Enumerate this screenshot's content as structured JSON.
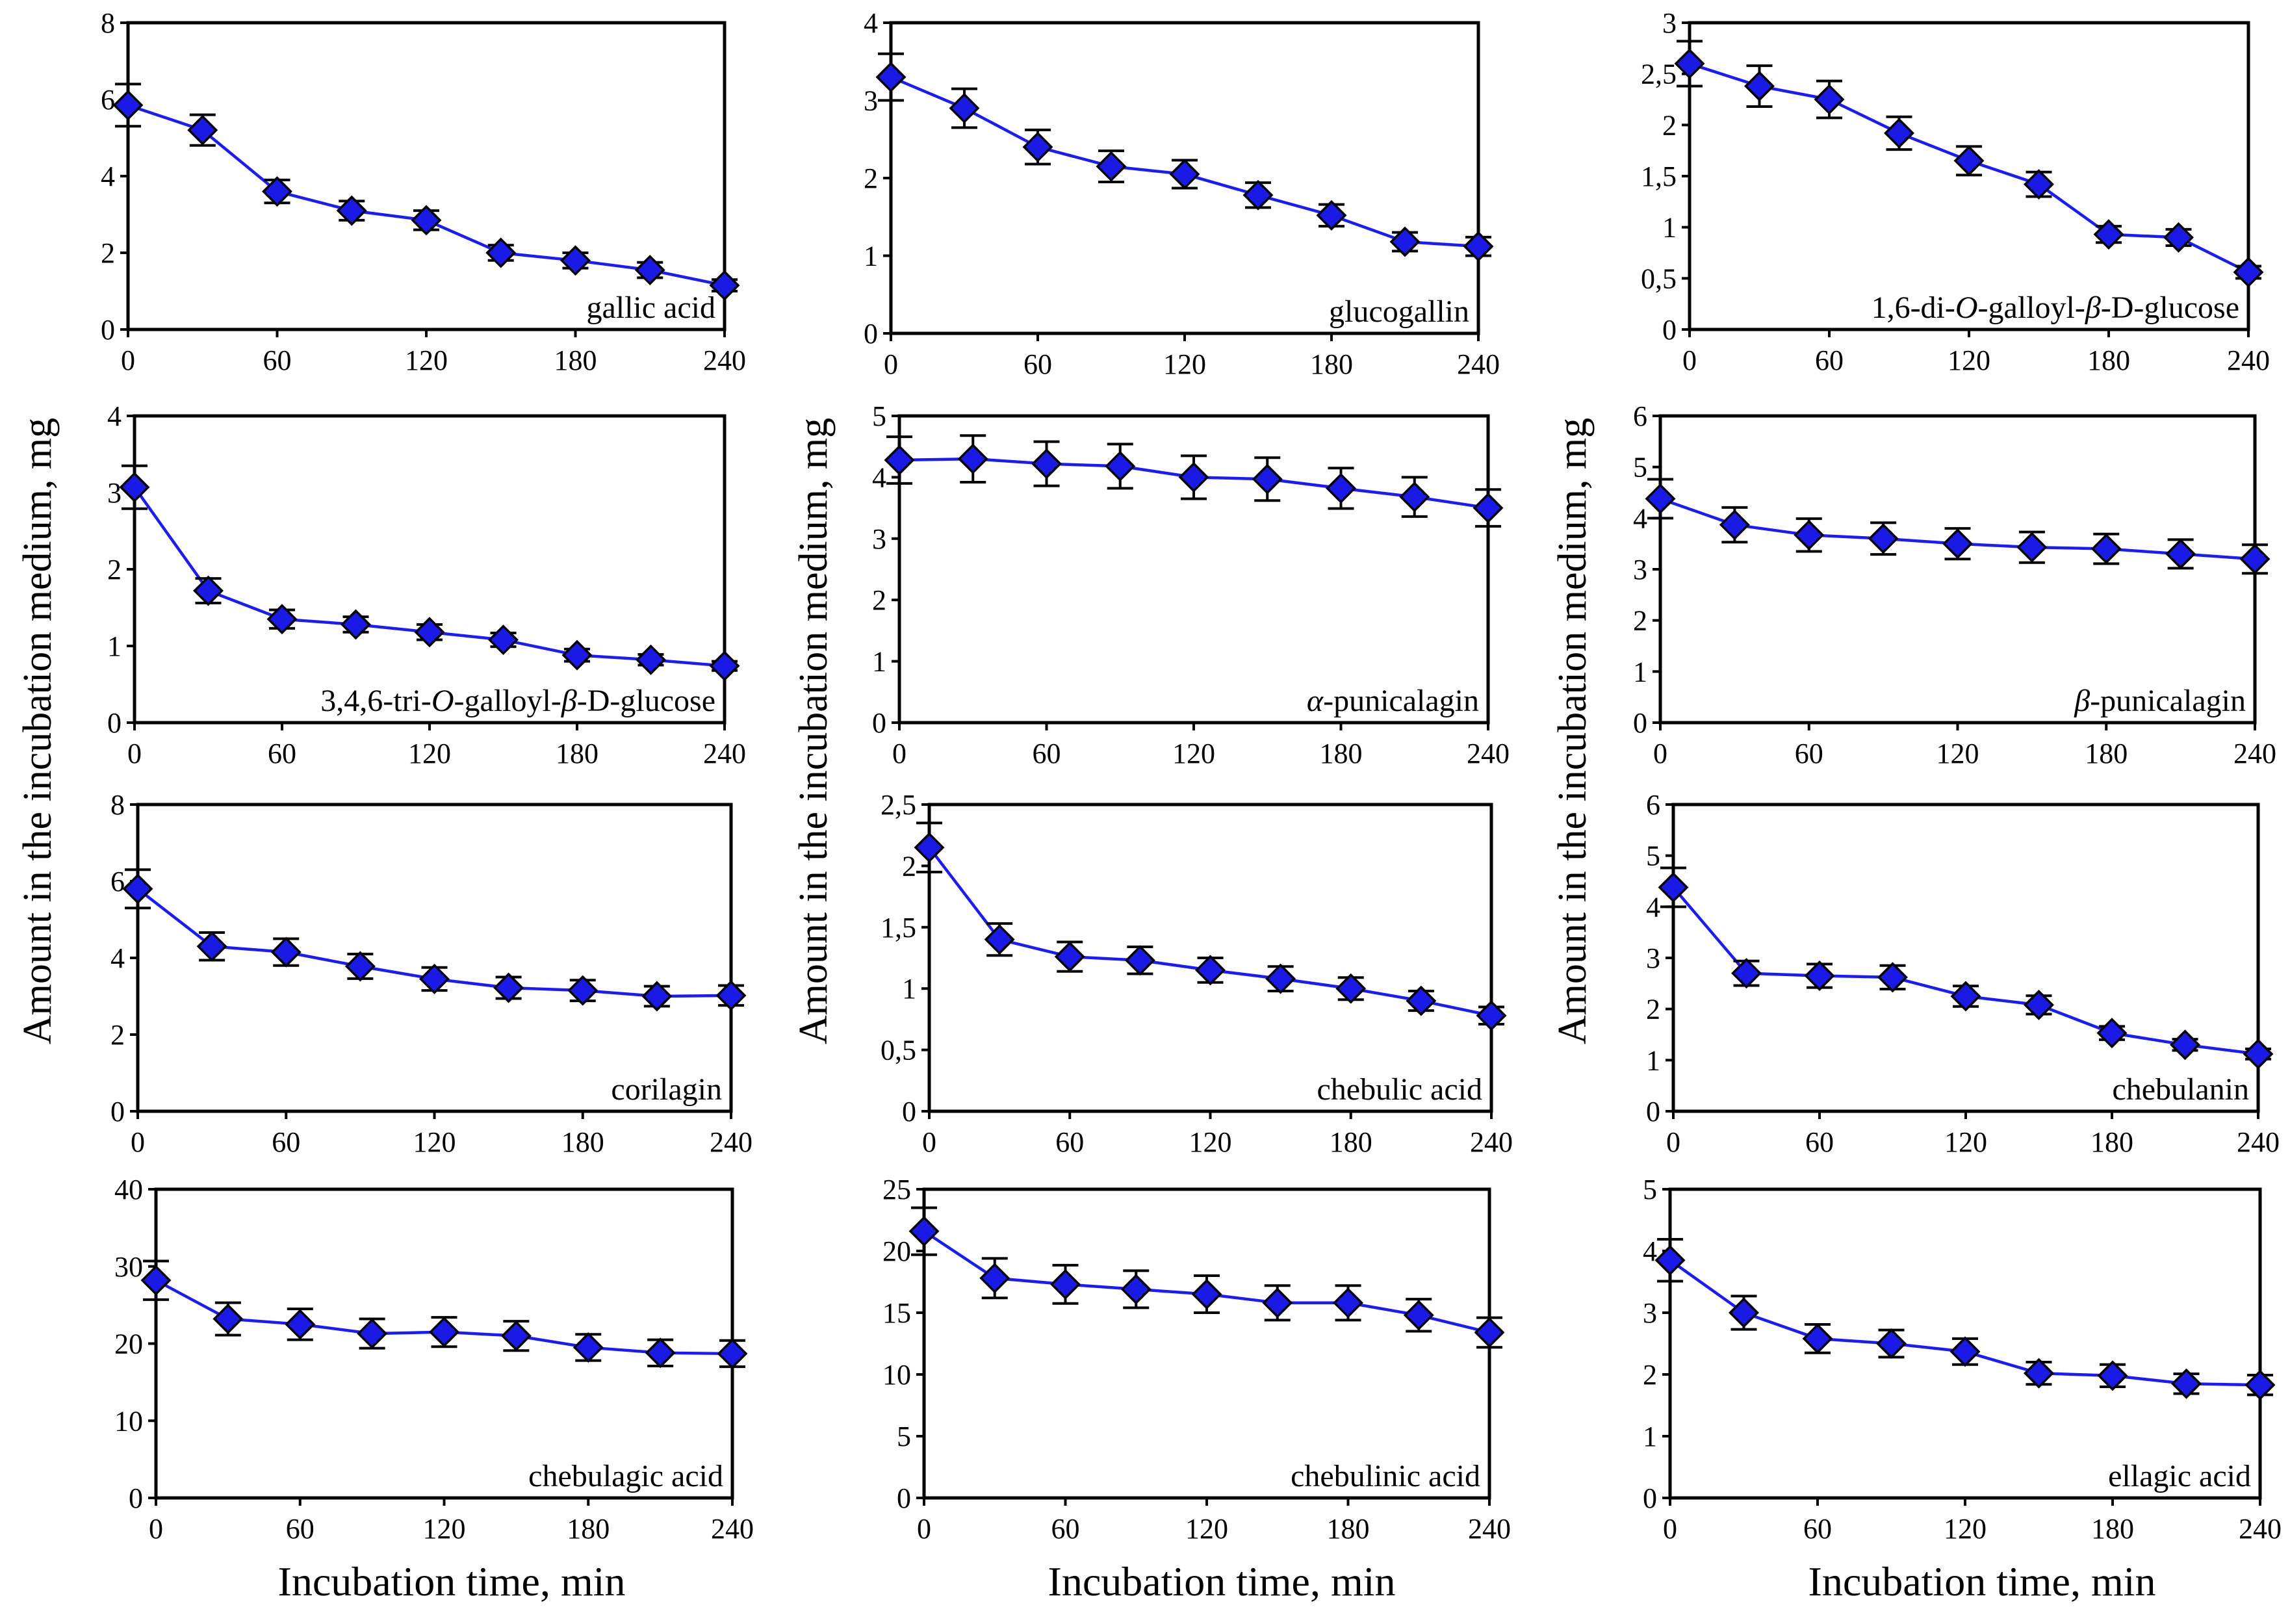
{
  "figure": {
    "y_axis_label": "Amount in the incubation medium, mg",
    "x_axis_label": "Incubation time, min",
    "series_color": "#1a1aff",
    "marker_fill": "#1a1ae6",
    "marker_stroke": "#000000",
    "x_ticks": [
      "0",
      "60",
      "120",
      "180",
      "240"
    ]
  },
  "chart_data": [
    {
      "type": "line",
      "name": "gallic acid",
      "x": [
        0,
        30,
        60,
        90,
        120,
        150,
        180,
        210,
        240
      ],
      "y": [
        5.85,
        5.2,
        3.6,
        3.1,
        2.85,
        2.0,
        1.8,
        1.55,
        1.15
      ],
      "err": [
        0.55,
        0.4,
        0.3,
        0.25,
        0.25,
        0.2,
        0.2,
        0.2,
        0.15
      ],
      "xlim": [
        0,
        240
      ],
      "ylim": [
        0,
        8
      ],
      "yticks": [
        "0",
        "2",
        "4",
        "6",
        "8"
      ],
      "xlabel": "Incubation time, min",
      "ylabel": "Amount in the incubation medium, mg"
    },
    {
      "type": "line",
      "name": "glucogallin",
      "x": [
        0,
        30,
        60,
        90,
        120,
        150,
        180,
        210,
        240
      ],
      "y": [
        3.3,
        2.9,
        2.4,
        2.15,
        2.05,
        1.78,
        1.52,
        1.18,
        1.12
      ],
      "err": [
        0.3,
        0.25,
        0.22,
        0.2,
        0.18,
        0.16,
        0.14,
        0.12,
        0.12
      ],
      "xlim": [
        0,
        240
      ],
      "ylim": [
        0,
        4
      ],
      "yticks": [
        "0",
        "1",
        "2",
        "3",
        "4"
      ],
      "xlabel": "Incubation time, min",
      "ylabel": "Amount in the incubation medium, mg"
    },
    {
      "type": "line",
      "name": "1,6-di-O-galloyl-β-D-glucose",
      "label_parts": [
        "1,6-di-",
        "O",
        "-galloyl-",
        "β",
        "-D-glucose"
      ],
      "x": [
        0,
        30,
        60,
        90,
        120,
        150,
        180,
        210,
        240
      ],
      "y": [
        2.6,
        2.38,
        2.25,
        1.92,
        1.65,
        1.42,
        0.93,
        0.9,
        0.56
      ],
      "err": [
        0.22,
        0.2,
        0.18,
        0.16,
        0.14,
        0.12,
        0.08,
        0.08,
        0.06
      ],
      "xlim": [
        0,
        240
      ],
      "ylim": [
        0,
        3
      ],
      "yticks": [
        "0",
        "0,5",
        "1",
        "1,5",
        "2",
        "2,5",
        "3"
      ],
      "xlabel": "Incubation time, min",
      "ylabel": "Amount in the incubation medium, mg"
    },
    {
      "type": "line",
      "name": "3,4,6-tri-O-galloyl-β-D-glucose",
      "label_parts": [
        "3,4,6-tri-",
        "O",
        "-galloyl-",
        "β",
        "-D-glucose"
      ],
      "x": [
        0,
        30,
        60,
        90,
        120,
        150,
        180,
        210,
        240
      ],
      "y": [
        3.07,
        1.72,
        1.35,
        1.28,
        1.18,
        1.08,
        0.88,
        0.82,
        0.74
      ],
      "err": [
        0.28,
        0.16,
        0.12,
        0.1,
        0.1,
        0.09,
        0.08,
        0.07,
        0.06
      ],
      "xlim": [
        0,
        240
      ],
      "ylim": [
        0,
        4
      ],
      "yticks": [
        "0",
        "1",
        "2",
        "3",
        "4"
      ],
      "xlabel": "Incubation time, min",
      "ylabel": "Amount in the incubation medium, mg"
    },
    {
      "type": "line",
      "name": "α-punicalagin",
      "label_parts": [
        "",
        "",
        "",
        "α",
        "-punicalagin"
      ],
      "x": [
        0,
        30,
        60,
        90,
        120,
        150,
        180,
        210,
        240
      ],
      "y": [
        4.28,
        4.3,
        4.22,
        4.18,
        4.0,
        3.97,
        3.82,
        3.68,
        3.5
      ],
      "err": [
        0.38,
        0.38,
        0.36,
        0.36,
        0.35,
        0.35,
        0.33,
        0.32,
        0.3
      ],
      "xlim": [
        0,
        240
      ],
      "ylim": [
        0,
        5
      ],
      "yticks": [
        "0",
        "1",
        "2",
        "3",
        "4",
        "5"
      ],
      "xlabel": "Incubation time, min",
      "ylabel": "Amount in the incubation medium, mg"
    },
    {
      "type": "line",
      "name": "β-punicalagin",
      "label_parts": [
        "",
        "",
        "",
        "β",
        "-punicalagin"
      ],
      "x": [
        0,
        30,
        60,
        90,
        120,
        150,
        180,
        210,
        240
      ],
      "y": [
        4.38,
        3.87,
        3.67,
        3.6,
        3.5,
        3.43,
        3.4,
        3.3,
        3.2
      ],
      "err": [
        0.38,
        0.34,
        0.32,
        0.31,
        0.3,
        0.3,
        0.29,
        0.28,
        0.28
      ],
      "xlim": [
        0,
        240
      ],
      "ylim": [
        0,
        6
      ],
      "yticks": [
        "0",
        "1",
        "2",
        "3",
        "4",
        "5",
        "6"
      ],
      "xlabel": "Incubation time, min",
      "ylabel": "Amount in the incubation medium, mg"
    },
    {
      "type": "line",
      "name": "corilagin",
      "x": [
        0,
        30,
        60,
        90,
        120,
        150,
        180,
        210,
        240
      ],
      "y": [
        5.8,
        4.3,
        4.15,
        3.78,
        3.45,
        3.22,
        3.15,
        3.0,
        3.02
      ],
      "err": [
        0.5,
        0.36,
        0.35,
        0.32,
        0.3,
        0.28,
        0.27,
        0.26,
        0.26
      ],
      "xlim": [
        0,
        240
      ],
      "ylim": [
        0,
        8
      ],
      "yticks": [
        "0",
        "2",
        "4",
        "6",
        "8"
      ],
      "xlabel": "Incubation time, min",
      "ylabel": "Amount in the incubation medium, mg"
    },
    {
      "type": "line",
      "name": "chebulic acid",
      "x": [
        0,
        30,
        60,
        90,
        120,
        150,
        180,
        210,
        240
      ],
      "y": [
        2.15,
        1.4,
        1.26,
        1.23,
        1.15,
        1.08,
        1.0,
        0.9,
        0.78
      ],
      "err": [
        0.2,
        0.13,
        0.12,
        0.11,
        0.1,
        0.1,
        0.09,
        0.08,
        0.07
      ],
      "xlim": [
        0,
        240
      ],
      "ylim": [
        0,
        2.5
      ],
      "yticks": [
        "0",
        "0,5",
        "1",
        "1,5",
        "2",
        "2,5"
      ],
      "xlabel": "Incubation time, min",
      "ylabel": "Amount in the incubation medium, mg"
    },
    {
      "type": "line",
      "name": "chebulanin",
      "x": [
        0,
        30,
        60,
        90,
        120,
        150,
        180,
        210,
        240
      ],
      "y": [
        4.38,
        2.7,
        2.65,
        2.62,
        2.25,
        2.08,
        1.53,
        1.3,
        1.12
      ],
      "err": [
        0.38,
        0.24,
        0.23,
        0.23,
        0.2,
        0.18,
        0.13,
        0.11,
        0.1
      ],
      "xlim": [
        0,
        240
      ],
      "ylim": [
        0,
        6
      ],
      "yticks": [
        "0",
        "1",
        "2",
        "3",
        "4",
        "5",
        "6"
      ],
      "xlabel": "Incubation time, min",
      "ylabel": "Amount in the incubation medium, mg"
    },
    {
      "type": "line",
      "name": "chebulagic acid",
      "x": [
        0,
        30,
        60,
        90,
        120,
        150,
        180,
        210,
        240
      ],
      "y": [
        28.2,
        23.2,
        22.5,
        21.3,
        21.5,
        21.0,
        19.5,
        18.8,
        18.7
      ],
      "err": [
        2.5,
        2.1,
        2.0,
        1.9,
        1.9,
        1.9,
        1.7,
        1.7,
        1.7
      ],
      "xlim": [
        0,
        240
      ],
      "ylim": [
        0,
        40
      ],
      "yticks": [
        "0",
        "10",
        "20",
        "30",
        "40"
      ],
      "xlabel": "Incubation time, min",
      "ylabel": "Amount in the incubation medium, mg"
    },
    {
      "type": "line",
      "name": "chebulinic acid",
      "x": [
        0,
        30,
        60,
        90,
        120,
        150,
        180,
        210,
        240
      ],
      "y": [
        21.6,
        17.8,
        17.3,
        16.9,
        16.5,
        15.8,
        15.8,
        14.8,
        13.4
      ],
      "err": [
        1.9,
        1.6,
        1.55,
        1.5,
        1.5,
        1.4,
        1.4,
        1.3,
        1.2
      ],
      "xlim": [
        0,
        240
      ],
      "ylim": [
        0,
        25
      ],
      "yticks": [
        "0",
        "5",
        "10",
        "15",
        "20",
        "25"
      ],
      "xlabel": "Incubation time, min",
      "ylabel": "Amount in the incubation medium, mg"
    },
    {
      "type": "line",
      "name": "ellagic acid",
      "x": [
        0,
        30,
        60,
        90,
        120,
        150,
        180,
        210,
        240
      ],
      "y": [
        3.85,
        3.0,
        2.58,
        2.5,
        2.37,
        2.02,
        1.98,
        1.85,
        1.83
      ],
      "err": [
        0.34,
        0.27,
        0.23,
        0.22,
        0.21,
        0.18,
        0.18,
        0.16,
        0.16
      ],
      "xlim": [
        0,
        240
      ],
      "ylim": [
        0,
        5
      ],
      "yticks": [
        "0",
        "1",
        "2",
        "3",
        "4",
        "5"
      ],
      "xlabel": "Incubation time, min",
      "ylabel": "Amount in the incubation medium, mg"
    }
  ]
}
